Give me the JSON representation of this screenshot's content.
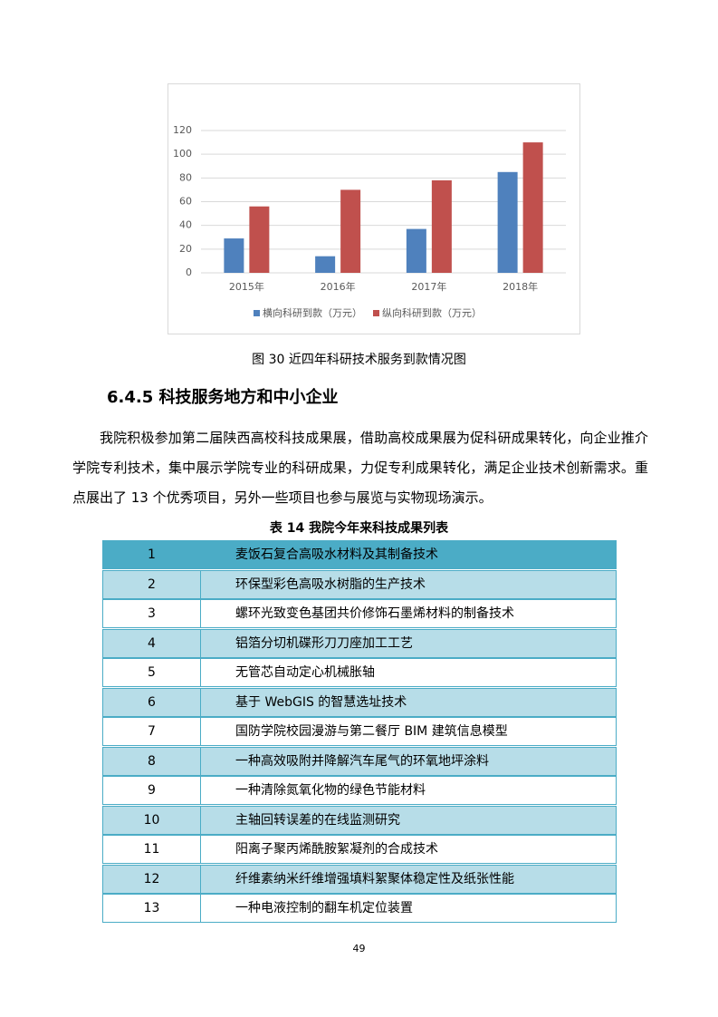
{
  "chart_data": {
    "type": "bar",
    "categories": [
      "2015年",
      "2016年",
      "2017年",
      "2018年"
    ],
    "series": [
      {
        "name": "横向科研到款（万元）",
        "color": "#4f81bd",
        "values": [
          29,
          14,
          37,
          85
        ]
      },
      {
        "name": "纵向科研到款（万元）",
        "color": "#c0504d",
        "values": [
          56,
          70,
          78,
          110
        ]
      }
    ],
    "ylim": [
      0,
      120
    ],
    "yticks": [
      0,
      20,
      40,
      60,
      80,
      100,
      120
    ],
    "grid": true,
    "legend": "bottom"
  },
  "figure_caption": "图 30 近四年科研技术服务到款情况图",
  "heading": "6.4.5 科技服务地方和中小企业",
  "paragraph": "我院积极参加第二届陕西高校科技成果展，借助高校成果展为促科研成果转化，向企业推介学院专利技术，集中展示学院专业的科研成果，力促专利成果转化，满足企业技术创新需求。重点展出了 13 个优秀项目，另外一些项目也参与展览与实物现场演示。",
  "table": {
    "caption": "表 14 我院今年来科技成果列表",
    "rows": [
      [
        "1",
        "麦饭石复合高吸水材料及其制备技术"
      ],
      [
        "2",
        "环保型彩色高吸水树脂的生产技术"
      ],
      [
        "3",
        "螺环光致变色基团共价修饰石墨烯材料的制备技术"
      ],
      [
        "4",
        "铝箔分切机碟形刀刀座加工工艺"
      ],
      [
        "5",
        "无管芯自动定心机械胀轴"
      ],
      [
        "6",
        "基于 WebGIS 的智慧选址技术"
      ],
      [
        "7",
        "国防学院校园漫游与第二餐厅 BIM 建筑信息模型"
      ],
      [
        "8",
        "一种高效吸附并降解汽车尾气的环氧地坪涂料"
      ],
      [
        "9",
        "一种清除氮氧化物的绿色节能材料"
      ],
      [
        "10",
        "主轴回转误差的在线监测研究"
      ],
      [
        "11",
        "阳离子聚丙烯酰胺絮凝剂的合成技术"
      ],
      [
        "12",
        "纤维素纳米纤维增强填料絮聚体稳定性及纸张性能"
      ],
      [
        "13",
        "一种电液控制的翻车机定位装置"
      ]
    ]
  },
  "page_number": "49"
}
